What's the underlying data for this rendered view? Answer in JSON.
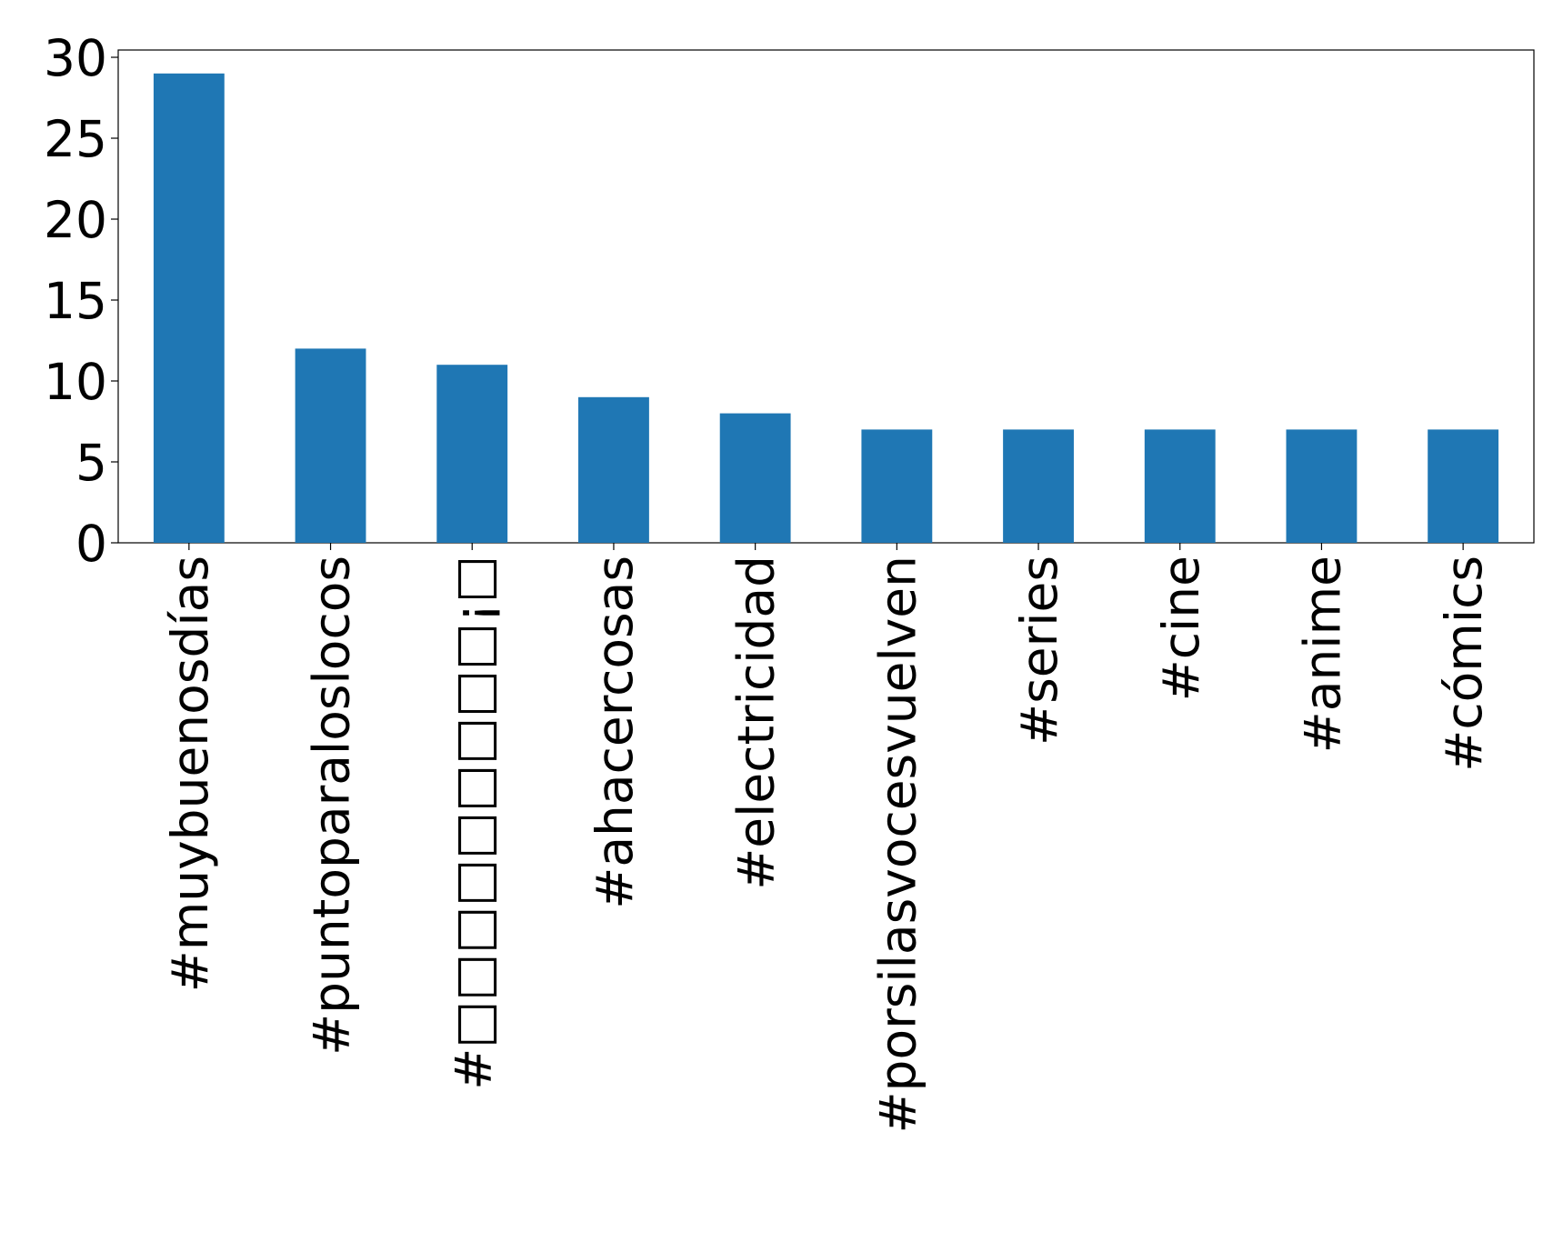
{
  "chart_data": {
    "type": "bar",
    "categories": [
      "#muybuenosdías",
      "#puntoparaloslocos",
      "#□□□□□□□□□¡□",
      "#ahacercosas",
      "#electricidad",
      "#porsilasvocesvuelven",
      "#series",
      "#cine",
      "#anime",
      "#cómics"
    ],
    "values": [
      29,
      12,
      11,
      9,
      8,
      7,
      7,
      7,
      7,
      7
    ],
    "color": "#1f77b4",
    "ylim": [
      0,
      30.45
    ],
    "yticks": [
      0,
      5,
      10,
      15,
      20,
      25,
      30
    ],
    "grid": false
  }
}
